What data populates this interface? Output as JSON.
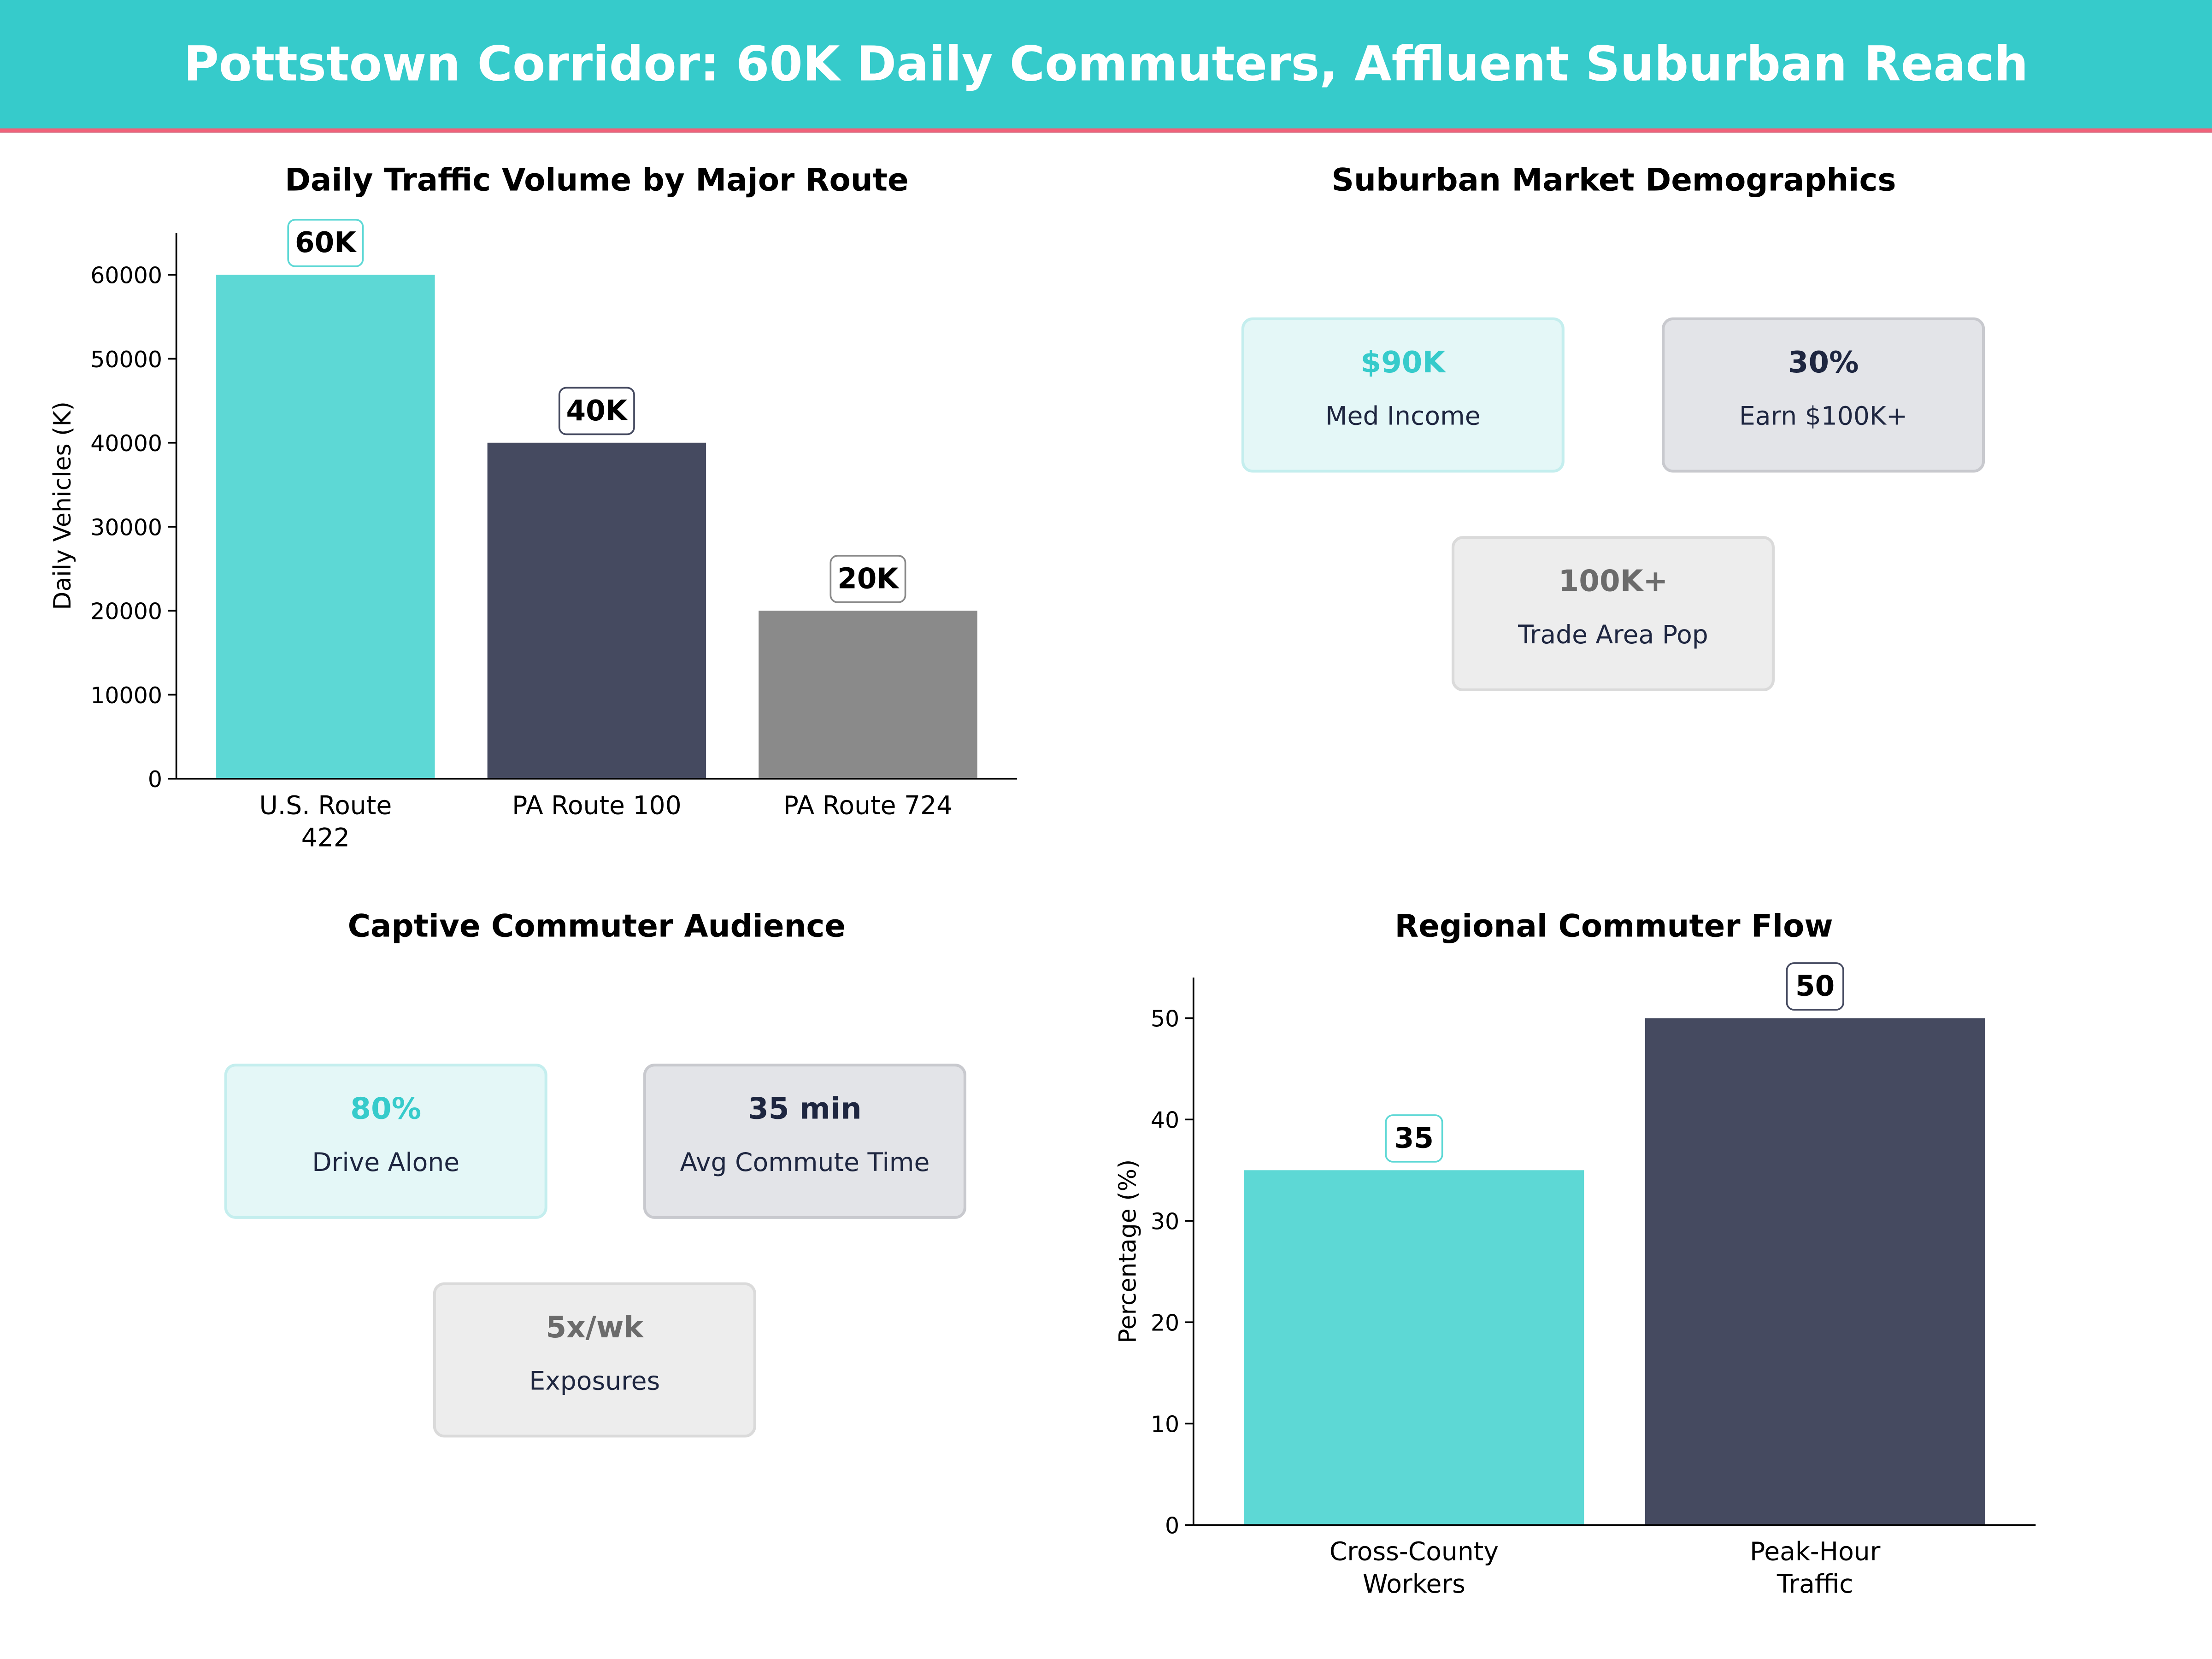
{
  "title": "Pottstown Corridor: 60K Daily Commuters, Affluent Suburban Reach",
  "colors": {
    "header": "#36CBCB",
    "accent_line": "#F0627A",
    "teal": "#5DD8D5",
    "navy": "#454A60",
    "gray": "#8A8A8A"
  },
  "chart_data": [
    {
      "type": "bar",
      "title": "Daily Traffic Volume by Major Route",
      "categories": [
        "U.S. Route\n422",
        "PA Route 100",
        "PA Route 724"
      ],
      "values": [
        60000,
        40000,
        20000
      ],
      "data_labels": [
        "60K",
        "40K",
        "20K"
      ],
      "bar_colors": [
        "#5DD8D5",
        "#454A60",
        "#8A8A8A"
      ],
      "label_border_colors": [
        "#5DD8D5",
        "#454A60",
        "#8A8A8A"
      ],
      "xlabel": "",
      "ylabel": "Daily Vehicles (K)",
      "ylim": [
        0,
        65000
      ],
      "yticks": [
        0,
        10000,
        20000,
        30000,
        40000,
        50000,
        60000
      ],
      "grid": false
    },
    {
      "type": "bar",
      "title": "Regional Commuter Flow",
      "categories": [
        "Cross-County\nWorkers",
        "Peak-Hour\nTraffic"
      ],
      "values": [
        35,
        50
      ],
      "data_labels": [
        "35",
        "50"
      ],
      "bar_colors": [
        "#5DD8D5",
        "#454A60"
      ],
      "label_border_colors": [
        "#5DD8D5",
        "#454A60"
      ],
      "xlabel": "",
      "ylabel": "Percentage (%)",
      "ylim": [
        0,
        54
      ],
      "yticks": [
        0,
        10,
        20,
        30,
        40,
        50
      ],
      "grid": false
    }
  ],
  "demographics": {
    "title": "Suburban Market Demographics",
    "cards": [
      {
        "value": "$90K",
        "label": "Med Income"
      },
      {
        "value": "30%",
        "label": "Earn $100K+"
      },
      {
        "value": "100K+",
        "label": "Trade Area Pop"
      }
    ]
  },
  "audience": {
    "title": "Captive Commuter Audience",
    "cards": [
      {
        "value": "80%",
        "label": "Drive Alone"
      },
      {
        "value": "35 min",
        "label": "Avg Commute Time"
      },
      {
        "value": "5x/wk",
        "label": "Exposures"
      }
    ]
  }
}
